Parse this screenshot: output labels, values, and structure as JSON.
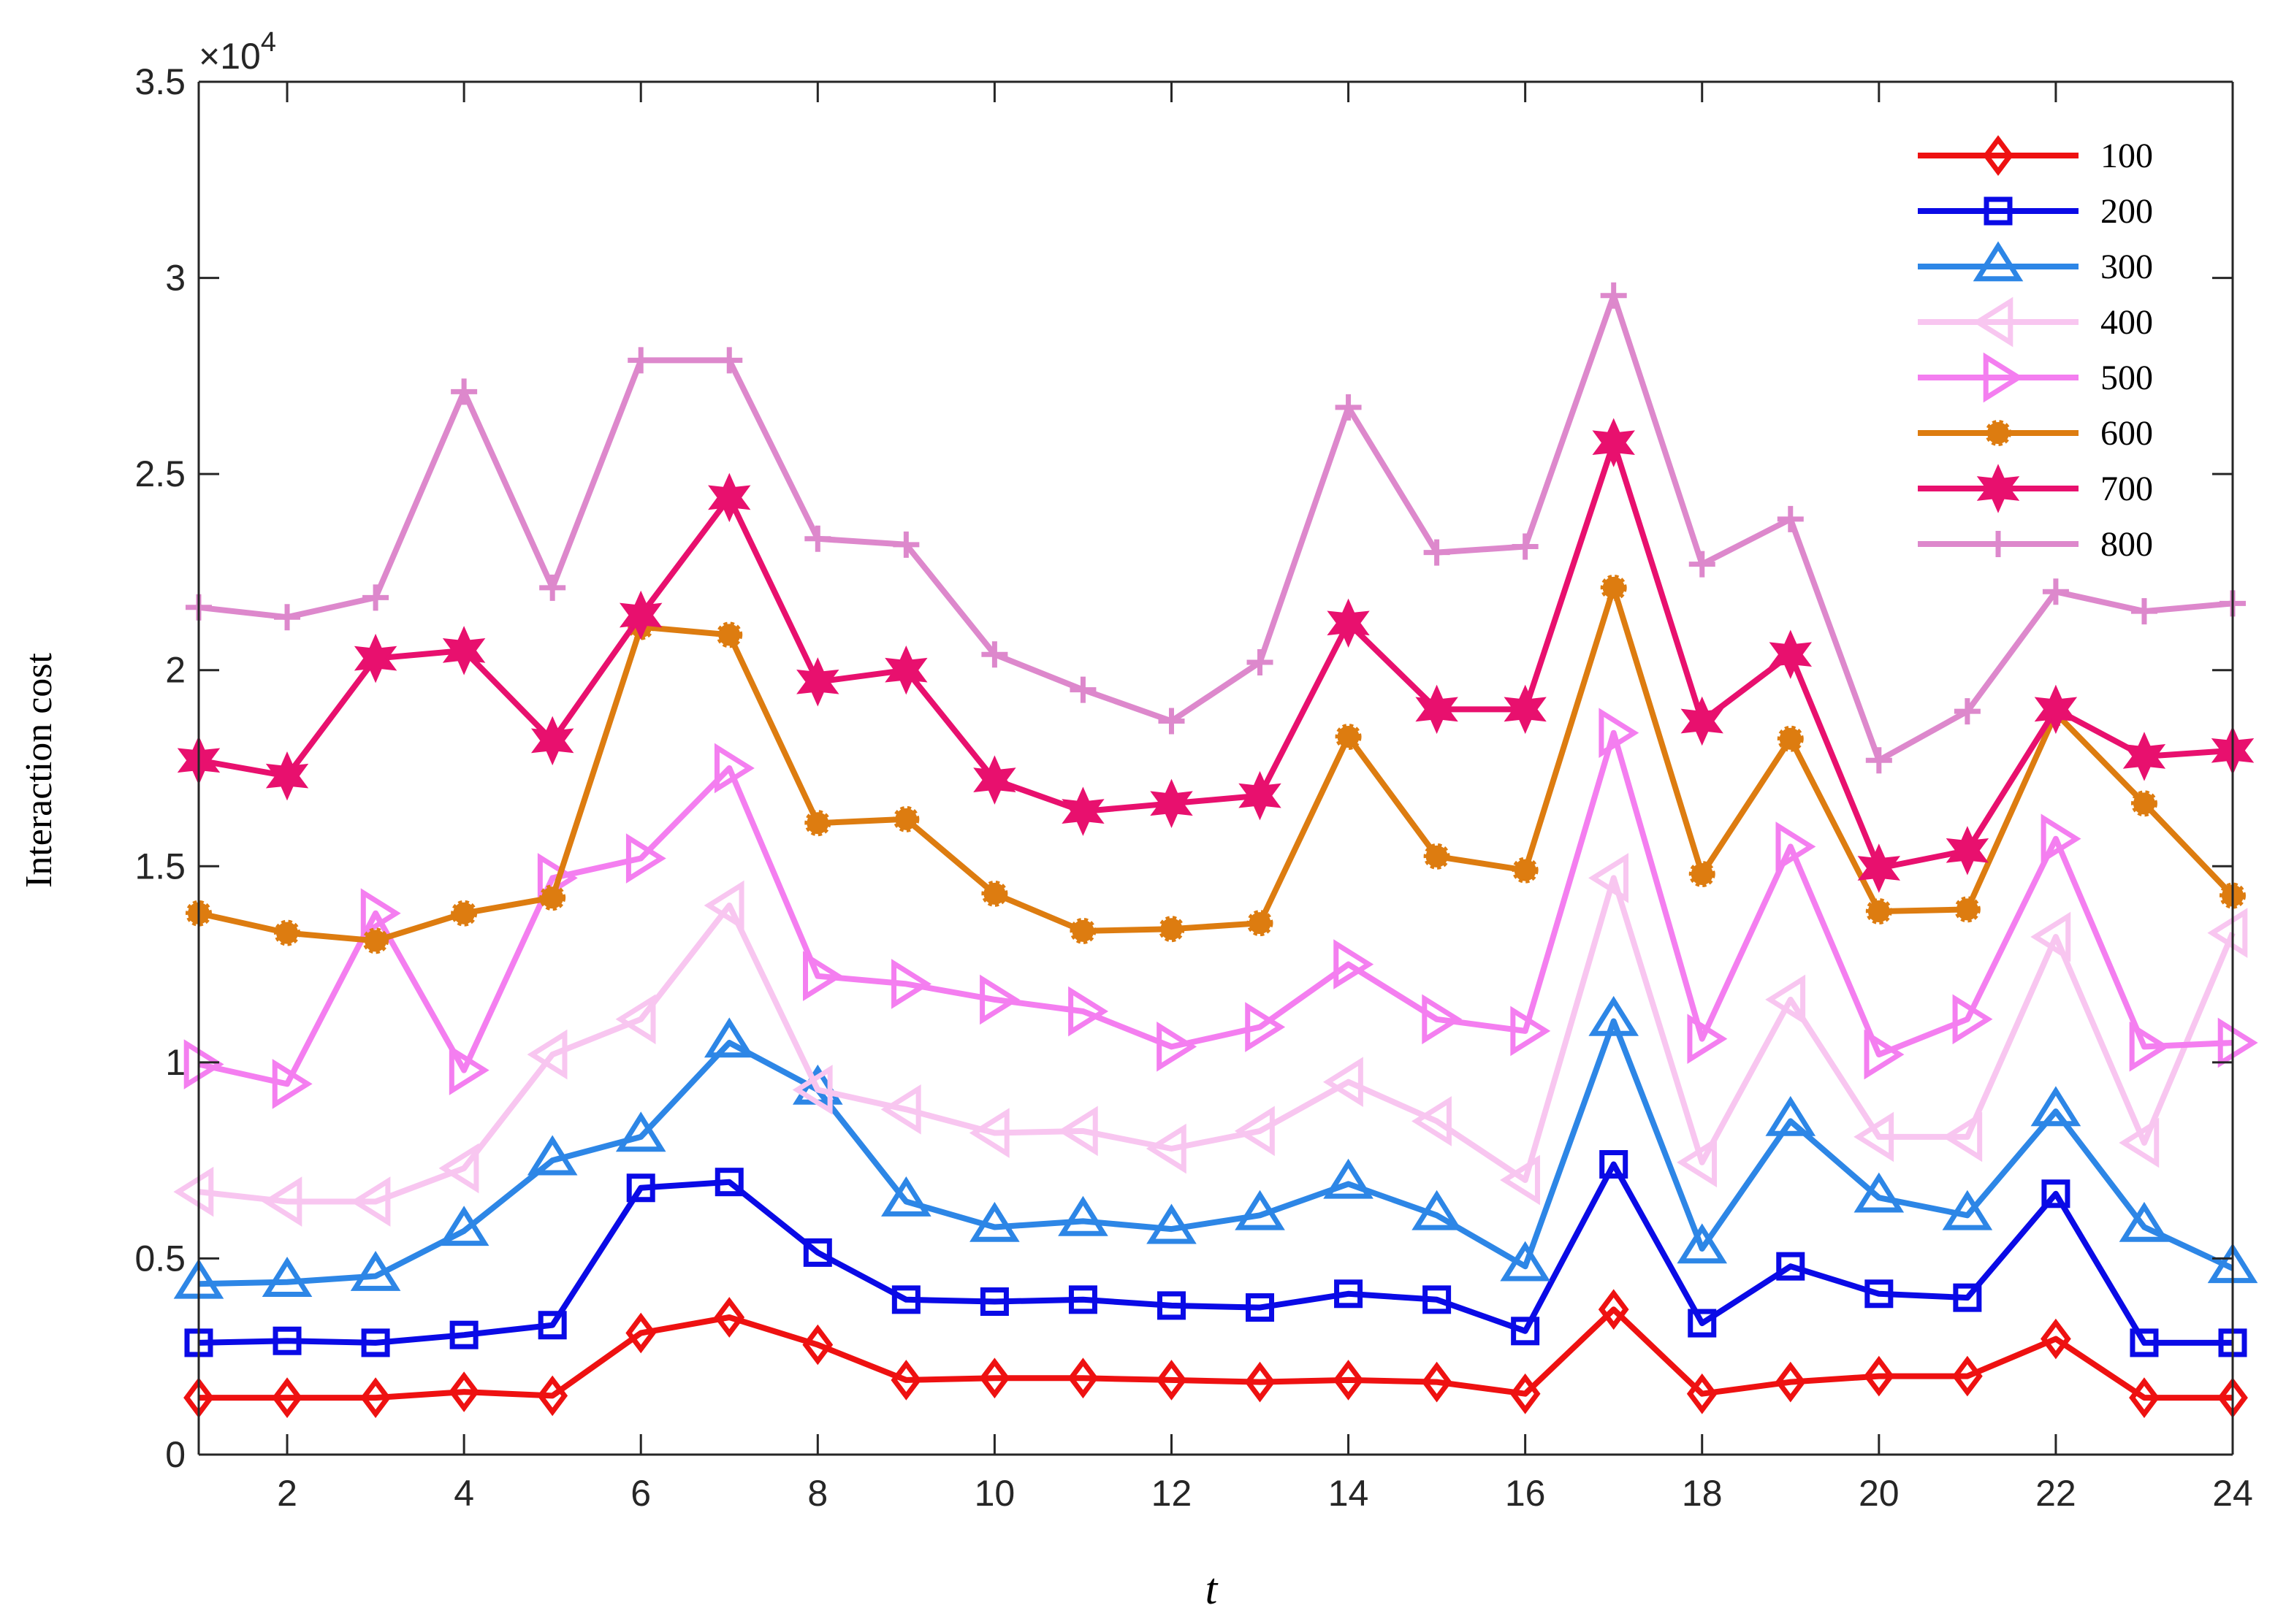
{
  "chart_data": {
    "type": "line",
    "title": "",
    "xlabel": "t",
    "ylabel": "Interaction cost",
    "y_scale_label": "×10",
    "y_scale_exponent": "4",
    "xlim": [
      1,
      24
    ],
    "ylim": [
      0,
      35000
    ],
    "x_ticks": [
      2,
      4,
      6,
      8,
      10,
      12,
      14,
      16,
      18,
      20,
      22,
      24
    ],
    "x_tick_labels": [
      "2",
      "4",
      "6",
      "8",
      "10",
      "12",
      "14",
      "16",
      "18",
      "20",
      "22",
      "24"
    ],
    "y_ticks": [
      0,
      5000,
      10000,
      15000,
      20000,
      25000,
      30000,
      35000
    ],
    "y_tick_labels": [
      "0",
      "0.5",
      "1",
      "1.5",
      "2",
      "2.5",
      "3",
      "3.5"
    ],
    "grid": false,
    "legend_position": "top-right",
    "x": [
      1,
      2,
      3,
      4,
      5,
      6,
      7,
      8,
      9,
      10,
      11,
      12,
      13,
      14,
      15,
      16,
      17,
      18,
      19,
      20,
      21,
      22,
      23,
      24
    ],
    "series": [
      {
        "name": "100",
        "color": "#ee1111",
        "marker": "diamond",
        "values": [
          1450,
          1450,
          1450,
          1600,
          1500,
          3100,
          3500,
          2800,
          1900,
          1950,
          1950,
          1900,
          1850,
          1900,
          1850,
          1550,
          3700,
          1550,
          1850,
          2000,
          2000,
          2950,
          1450,
          1450
        ]
      },
      {
        "name": "200",
        "color": "#0a0ae6",
        "marker": "square",
        "values": [
          2850,
          2900,
          2850,
          3050,
          3300,
          6800,
          6950,
          5150,
          3950,
          3900,
          3950,
          3800,
          3750,
          4100,
          3950,
          3150,
          7400,
          3350,
          4800,
          4100,
          4000,
          6650,
          2850,
          2850
        ]
      },
      {
        "name": "300",
        "color": "#2d86e6",
        "marker": "triangle-up",
        "values": [
          4350,
          4400,
          4550,
          5700,
          7500,
          8100,
          10500,
          9300,
          6450,
          5800,
          5950,
          5750,
          6100,
          6900,
          6100,
          4800,
          11050,
          5250,
          8500,
          6550,
          6100,
          8750,
          5800,
          4750
        ]
      },
      {
        "name": "400",
        "color": "#f8c6f0",
        "marker": "triangle-left",
        "values": [
          6700,
          6450,
          6450,
          7300,
          10200,
          11100,
          14000,
          9300,
          8800,
          8200,
          8250,
          7800,
          8250,
          9500,
          8500,
          7000,
          14700,
          7450,
          11600,
          8100,
          8100,
          13200,
          7950,
          13300
        ]
      },
      {
        "name": "500",
        "color": "#f47ef0",
        "marker": "triangle-right",
        "values": [
          9950,
          9450,
          13800,
          9800,
          14700,
          15200,
          17500,
          12200,
          12000,
          11600,
          11300,
          10400,
          10900,
          12500,
          11100,
          10800,
          18400,
          10600,
          15500,
          10200,
          11100,
          15700,
          10400,
          10500
        ]
      },
      {
        "name": "600",
        "color": "#dd7c10",
        "marker": "circle",
        "values": [
          13800,
          13300,
          13100,
          13800,
          14200,
          21100,
          20900,
          16100,
          16200,
          14300,
          13350,
          13400,
          13550,
          18300,
          15250,
          14900,
          22100,
          14800,
          18250,
          13850,
          13900,
          18900,
          16600,
          14250
        ]
      },
      {
        "name": "700",
        "color": "#e8106e",
        "marker": "hexagram",
        "values": [
          17700,
          17300,
          20300,
          20500,
          18200,
          21400,
          24400,
          19700,
          20000,
          17200,
          16400,
          16600,
          16800,
          21200,
          19000,
          19000,
          25800,
          18700,
          20400,
          14950,
          15400,
          19000,
          17800,
          17950
        ]
      },
      {
        "name": "800",
        "color": "#dd88cc",
        "marker": "plus",
        "values": [
          21600,
          21350,
          21850,
          27100,
          22100,
          27900,
          27900,
          23350,
          23200,
          20400,
          19500,
          18700,
          20200,
          26700,
          23000,
          23150,
          29550,
          22700,
          23850,
          17700,
          18950,
          22000,
          21500,
          21700
        ]
      }
    ]
  }
}
